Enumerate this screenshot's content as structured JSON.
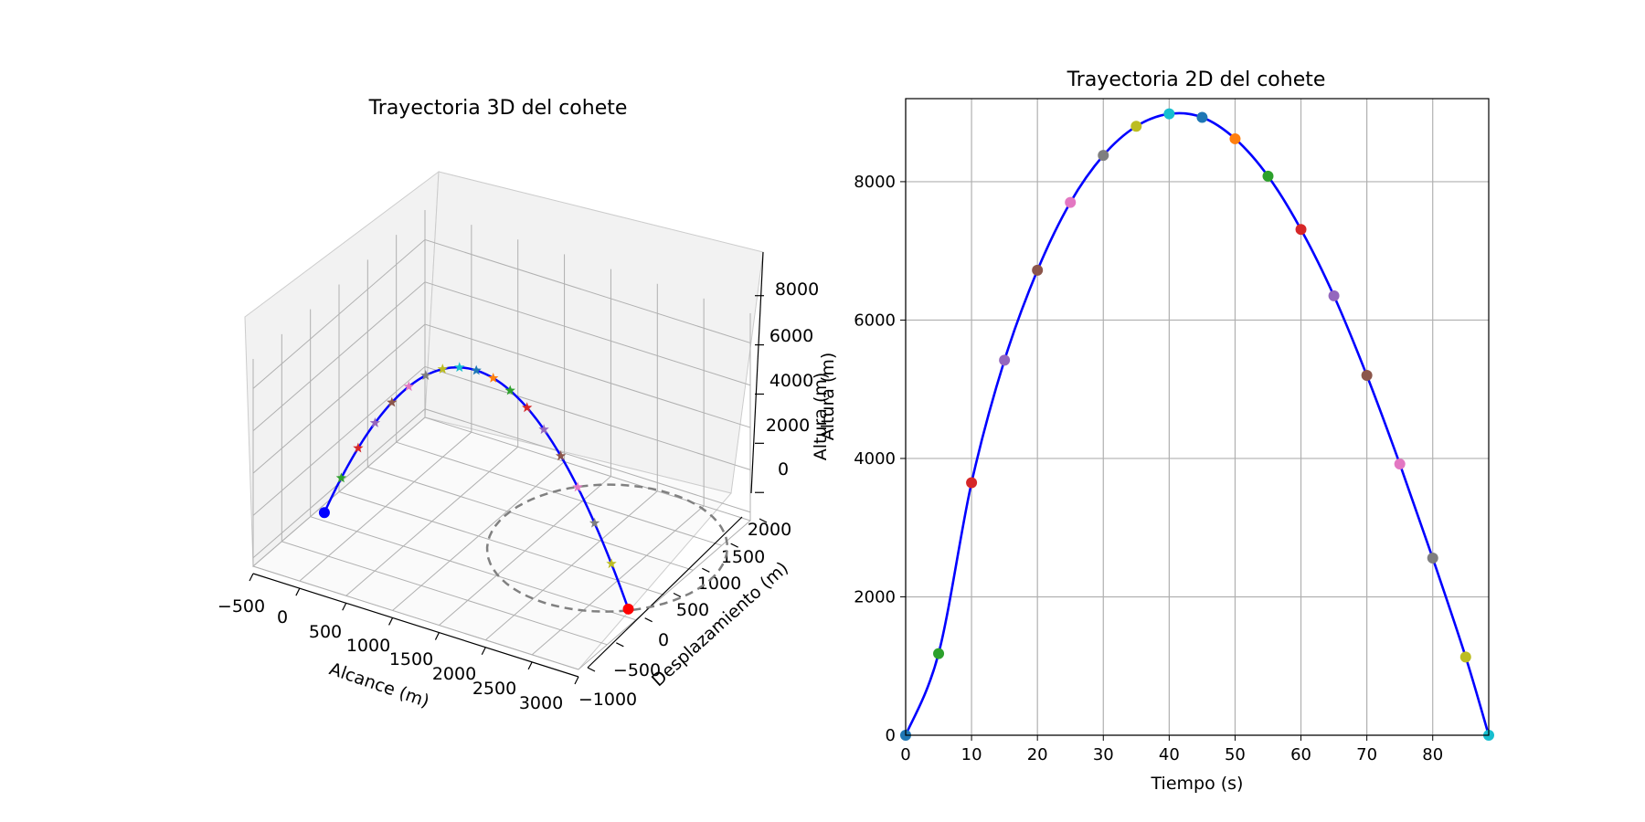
{
  "chart_data": [
    {
      "type": "line3d",
      "title": "Trayectoria 3D del cohete",
      "xlabel": "Alcance (m)",
      "ylabel": "Desplazamiento (m)",
      "zlabel": "Altura (m)",
      "xticks": [
        "−500",
        "0",
        "500",
        "1000",
        "1500",
        "2000",
        "2500",
        "3000"
      ],
      "yticks": [
        "−1000",
        "−500",
        "0",
        "500",
        "1000",
        "1500",
        "2000"
      ],
      "zticks": [
        "0",
        "2000",
        "4000",
        "6000",
        "8000"
      ],
      "xlim": [
        -500,
        3000
      ],
      "ylim": [
        -1000,
        2000
      ],
      "zlim": [
        -400,
        9400
      ],
      "grid": true,
      "trajectory": {
        "color": "#0000ff",
        "x_start": -350,
        "x_end": 2920,
        "y": 0,
        "z_max": 9000,
        "start_marker_color": "#0000ff",
        "end_marker_color": "#ff0000",
        "marker_shape": "star"
      },
      "circle": {
        "center_x": 2200,
        "center_y": 800,
        "radius": 1100,
        "color": "#808080",
        "style": "dashed"
      },
      "marker_colors": [
        "#2ca02c",
        "#d62728",
        "#9467bd",
        "#8c564b",
        "#e377c2",
        "#7f7f7f",
        "#bcbd22",
        "#17becf",
        "#1f77b4",
        "#ff7f0e",
        "#2ca02c",
        "#d62728",
        "#9467bd",
        "#8c564b",
        "#e377c2",
        "#7f7f7f",
        "#bcbd22"
      ]
    },
    {
      "type": "line",
      "title": "Trayectoria 2D del cohete",
      "xlabel": "Tiempo (s)",
      "ylabel": "Altura (m)",
      "xlim": [
        0,
        88.5
      ],
      "ylim": [
        0,
        9200
      ],
      "xticks": [
        0,
        10,
        20,
        30,
        40,
        50,
        60,
        70,
        80
      ],
      "yticks": [
        0,
        2000,
        4000,
        6000,
        8000
      ],
      "grid": true,
      "line_color": "#0000ff",
      "curve": {
        "t_end": 88.5,
        "h_max": 9000,
        "t_peak": 41
      },
      "points": [
        {
          "t": 0,
          "h": 0,
          "color": "#1f77b4"
        },
        {
          "t": 5,
          "h": 1180,
          "color": "#2ca02c"
        },
        {
          "t": 10,
          "h": 3650,
          "color": "#d62728"
        },
        {
          "t": 15,
          "h": 5420,
          "color": "#9467bd"
        },
        {
          "t": 20,
          "h": 6720,
          "color": "#8c564b"
        },
        {
          "t": 25,
          "h": 7700,
          "color": "#e377c2"
        },
        {
          "t": 30,
          "h": 8380,
          "color": "#7f7f7f"
        },
        {
          "t": 35,
          "h": 8800,
          "color": "#bcbd22"
        },
        {
          "t": 40,
          "h": 8980,
          "color": "#17becf"
        },
        {
          "t": 45,
          "h": 8930,
          "color": "#1f77b4"
        },
        {
          "t": 50,
          "h": 8620,
          "color": "#ff7f0e"
        },
        {
          "t": 55,
          "h": 8080,
          "color": "#2ca02c"
        },
        {
          "t": 60,
          "h": 7310,
          "color": "#d62728"
        },
        {
          "t": 65,
          "h": 6350,
          "color": "#9467bd"
        },
        {
          "t": 70,
          "h": 5200,
          "color": "#8c564b"
        },
        {
          "t": 75,
          "h": 3920,
          "color": "#e377c2"
        },
        {
          "t": 80,
          "h": 2560,
          "color": "#7f7f7f"
        },
        {
          "t": 85,
          "h": 1130,
          "color": "#bcbd22"
        },
        {
          "t": 88.5,
          "h": 0,
          "color": "#17becf"
        }
      ]
    }
  ]
}
